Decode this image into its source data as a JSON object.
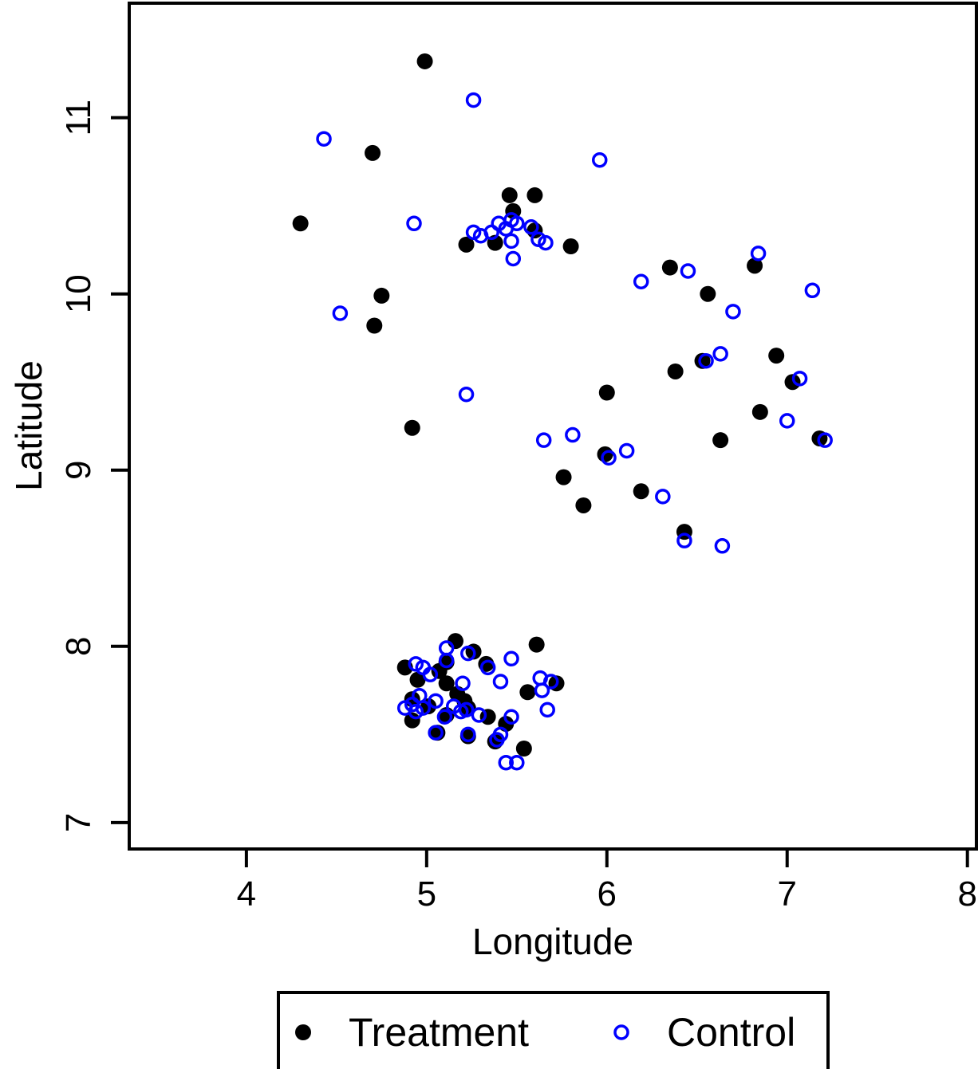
{
  "chart_data": {
    "type": "scatter",
    "xlabel": "Longitude",
    "ylabel": "Latitude",
    "xlim": [
      3.35,
      8.05
    ],
    "ylim": [
      6.85,
      11.65
    ],
    "x_ticks": [
      "4",
      "5",
      "6",
      "7",
      "8"
    ],
    "y_ticks": [
      "7",
      "8",
      "9",
      "10",
      "11"
    ],
    "grid": false,
    "legend_position": "bottom",
    "series": [
      {
        "name": "Treatment",
        "marker": "filled-circle",
        "color": "#000000",
        "points": [
          [
            4.99,
            11.32
          ],
          [
            4.7,
            10.8
          ],
          [
            4.3,
            10.4
          ],
          [
            4.75,
            9.99
          ],
          [
            4.71,
            9.82
          ],
          [
            4.92,
            9.24
          ],
          [
            5.46,
            10.56
          ],
          [
            5.6,
            10.56
          ],
          [
            5.48,
            10.47
          ],
          [
            5.6,
            10.36
          ],
          [
            5.22,
            10.28
          ],
          [
            5.38,
            10.29
          ],
          [
            5.8,
            10.27
          ],
          [
            6.35,
            10.15
          ],
          [
            6.82,
            10.16
          ],
          [
            6.56,
            10.0
          ],
          [
            6.94,
            9.65
          ],
          [
            6.38,
            9.56
          ],
          [
            7.03,
            9.5
          ],
          [
            6.53,
            9.62
          ],
          [
            6.0,
            9.44
          ],
          [
            6.85,
            9.33
          ],
          [
            7.18,
            9.18
          ],
          [
            6.63,
            9.17
          ],
          [
            5.99,
            9.09
          ],
          [
            5.76,
            8.96
          ],
          [
            6.19,
            8.88
          ],
          [
            5.87,
            8.8
          ],
          [
            6.43,
            8.65
          ],
          [
            5.16,
            8.03
          ],
          [
            5.61,
            8.01
          ],
          [
            5.26,
            7.97
          ],
          [
            5.11,
            7.91
          ],
          [
            5.33,
            7.9
          ],
          [
            4.88,
            7.88
          ],
          [
            5.07,
            7.86
          ],
          [
            4.95,
            7.81
          ],
          [
            5.11,
            7.79
          ],
          [
            5.72,
            7.79
          ],
          [
            5.56,
            7.74
          ],
          [
            5.17,
            7.73
          ],
          [
            4.92,
            7.7
          ],
          [
            5.21,
            7.69
          ],
          [
            5.01,
            7.66
          ],
          [
            5.23,
            7.65
          ],
          [
            5.11,
            7.61
          ],
          [
            5.34,
            7.6
          ],
          [
            4.92,
            7.58
          ],
          [
            5.44,
            7.56
          ],
          [
            5.06,
            7.51
          ],
          [
            5.23,
            7.49
          ],
          [
            5.38,
            7.46
          ],
          [
            5.54,
            7.42
          ]
        ]
      },
      {
        "name": "Control",
        "marker": "open-circle",
        "color": "#0000ff",
        "points": [
          [
            5.26,
            11.1
          ],
          [
            4.43,
            10.88
          ],
          [
            5.96,
            10.76
          ],
          [
            4.93,
            10.4
          ],
          [
            5.4,
            10.4
          ],
          [
            5.47,
            10.42
          ],
          [
            5.5,
            10.4
          ],
          [
            5.58,
            10.38
          ],
          [
            5.44,
            10.37
          ],
          [
            5.36,
            10.35
          ],
          [
            5.26,
            10.35
          ],
          [
            5.3,
            10.33
          ],
          [
            5.62,
            10.31
          ],
          [
            5.47,
            10.3
          ],
          [
            5.66,
            10.29
          ],
          [
            5.48,
            10.2
          ],
          [
            6.84,
            10.23
          ],
          [
            6.45,
            10.13
          ],
          [
            6.19,
            10.07
          ],
          [
            7.14,
            10.02
          ],
          [
            6.7,
            9.9
          ],
          [
            4.52,
            9.89
          ],
          [
            6.63,
            9.66
          ],
          [
            6.55,
            9.62
          ],
          [
            7.07,
            9.52
          ],
          [
            5.22,
            9.43
          ],
          [
            7.0,
            9.28
          ],
          [
            5.81,
            9.2
          ],
          [
            5.65,
            9.17
          ],
          [
            7.21,
            9.17
          ],
          [
            6.11,
            9.11
          ],
          [
            6.01,
            9.07
          ],
          [
            6.31,
            8.85
          ],
          [
            6.43,
            8.6
          ],
          [
            6.64,
            8.57
          ],
          [
            5.11,
            7.99
          ],
          [
            5.23,
            7.96
          ],
          [
            5.47,
            7.93
          ],
          [
            5.11,
            7.92
          ],
          [
            4.94,
            7.9
          ],
          [
            4.98,
            7.88
          ],
          [
            5.34,
            7.88
          ],
          [
            5.02,
            7.84
          ],
          [
            5.63,
            7.82
          ],
          [
            5.69,
            7.8
          ],
          [
            5.41,
            7.8
          ],
          [
            5.2,
            7.79
          ],
          [
            5.64,
            7.75
          ],
          [
            4.96,
            7.72
          ],
          [
            5.05,
            7.69
          ],
          [
            4.92,
            7.67
          ],
          [
            5.15,
            7.66
          ],
          [
            4.88,
            7.65
          ],
          [
            4.98,
            7.65
          ],
          [
            5.22,
            7.64
          ],
          [
            4.94,
            7.63
          ],
          [
            5.67,
            7.64
          ],
          [
            5.19,
            7.63
          ],
          [
            5.29,
            7.61
          ],
          [
            5.1,
            7.6
          ],
          [
            5.47,
            7.6
          ],
          [
            5.05,
            7.51
          ],
          [
            5.23,
            7.5
          ],
          [
            5.41,
            7.5
          ],
          [
            5.39,
            7.47
          ],
          [
            5.44,
            7.34
          ],
          [
            5.5,
            7.34
          ]
        ]
      }
    ]
  }
}
